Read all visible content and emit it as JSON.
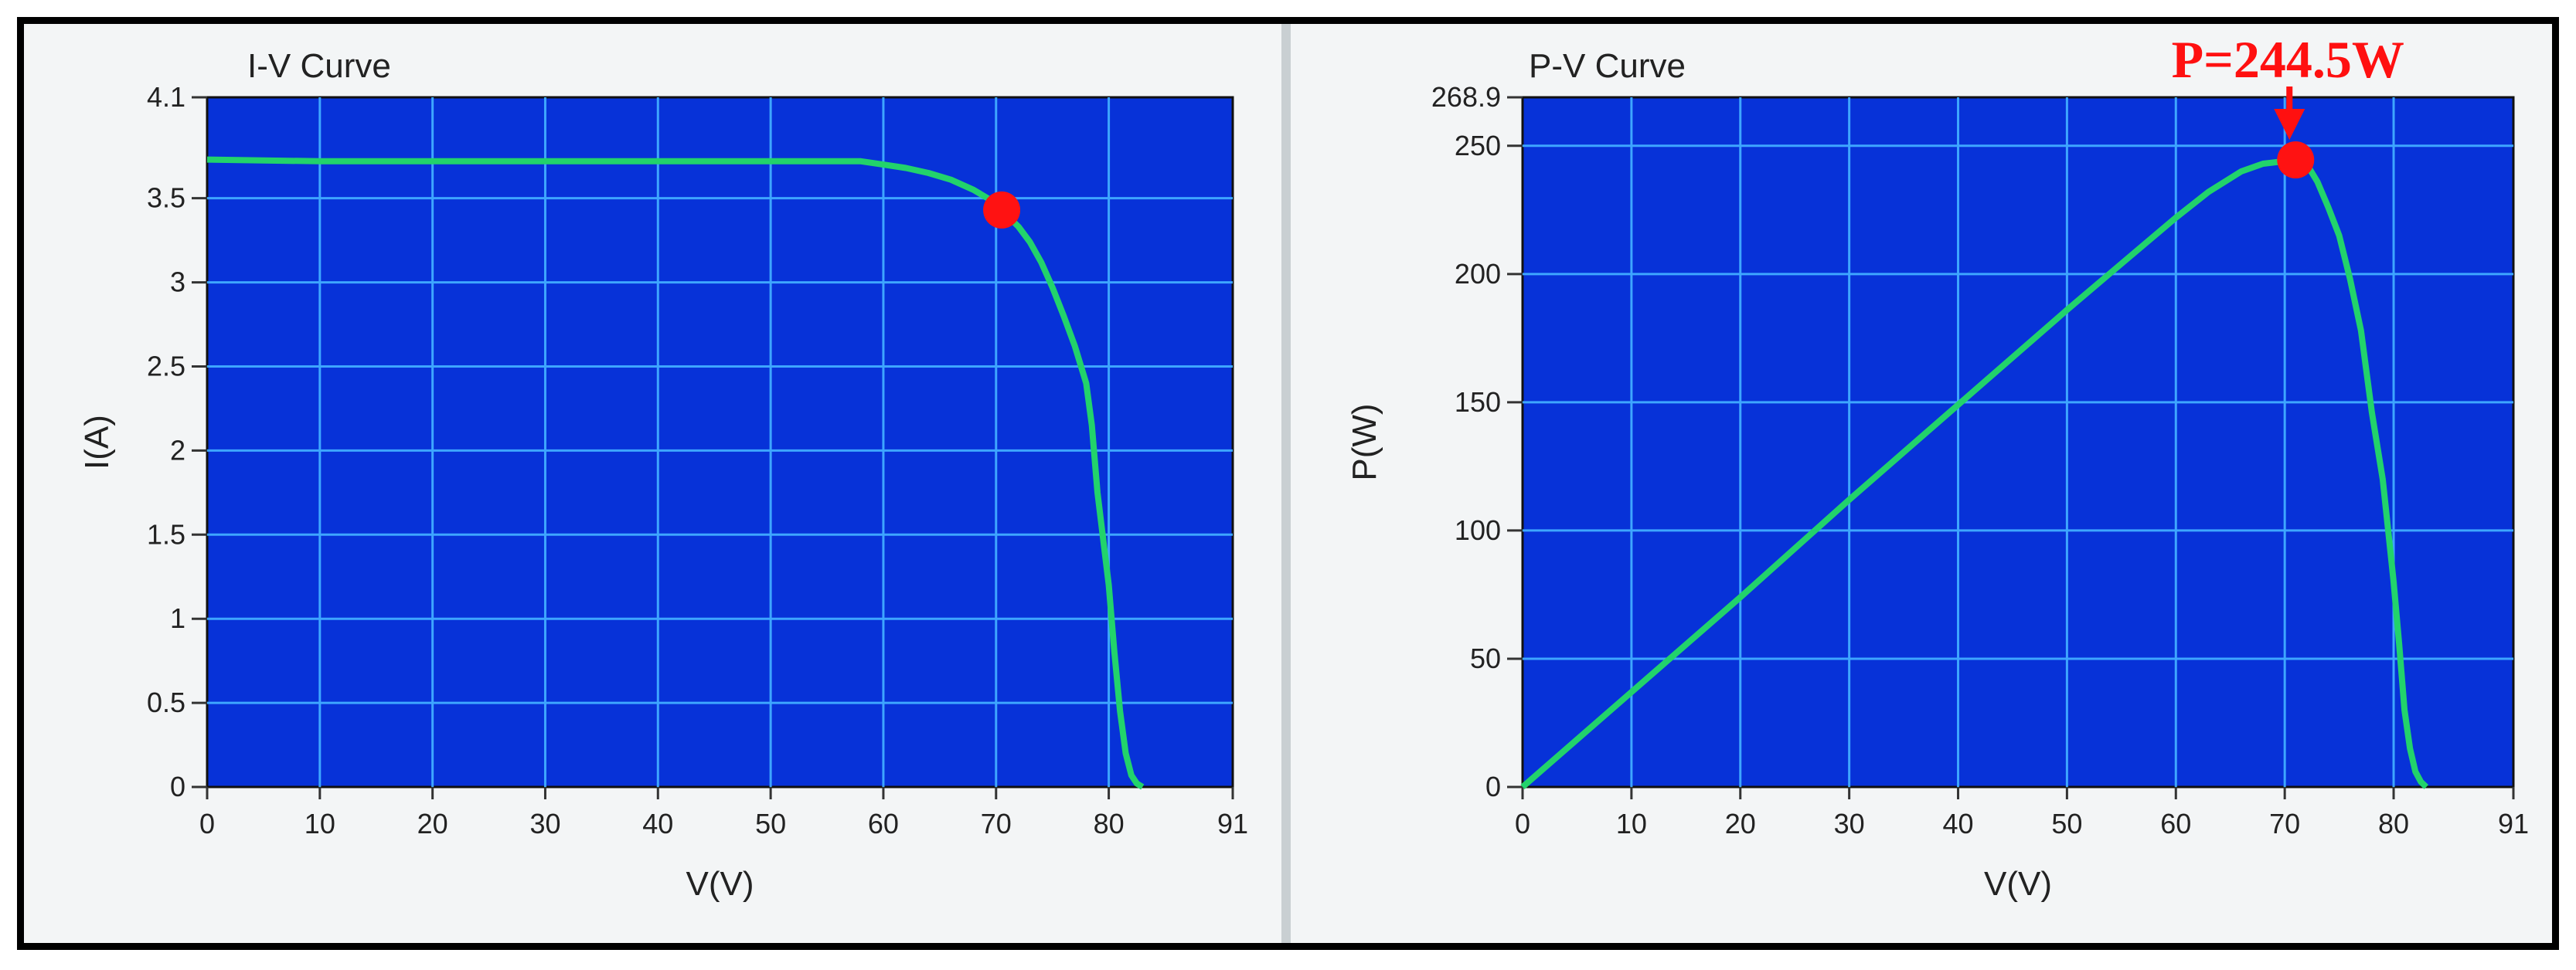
{
  "chart_data": [
    {
      "type": "line",
      "title": "I-V Curve",
      "xlabel": "V(V)",
      "ylabel": "I(A)",
      "xlim": [
        0,
        91
      ],
      "ylim": [
        0,
        4.1
      ],
      "xticks": [
        "0",
        "10",
        "20",
        "30",
        "40",
        "50",
        "60",
        "70",
        "80",
        "91"
      ],
      "yticks": [
        "0",
        "0.5",
        "1",
        "1.5",
        "2",
        "2.5",
        "3",
        "3.5",
        "4.1"
      ],
      "grid": true,
      "colors": {
        "background": "#0732d8",
        "grid": "#3ea6ff",
        "curve": "#22d36b",
        "marker": "#ff1212"
      },
      "series": [
        {
          "x": [
            0,
            10,
            20,
            30,
            40,
            50,
            58,
            60,
            62,
            64,
            66,
            68,
            70,
            70.5,
            72,
            73,
            74,
            75,
            76,
            77,
            78,
            78.5,
            79,
            80,
            80.5,
            81,
            81.5,
            82,
            82.5,
            83
          ],
          "y": [
            3.73,
            3.72,
            3.72,
            3.72,
            3.72,
            3.72,
            3.72,
            3.7,
            3.68,
            3.65,
            3.61,
            3.55,
            3.47,
            3.43,
            3.33,
            3.24,
            3.12,
            2.97,
            2.8,
            2.62,
            2.4,
            2.15,
            1.75,
            1.2,
            0.8,
            0.45,
            0.2,
            0.07,
            0.02,
            0.0
          ]
        }
      ],
      "marker": {
        "x": 70.5,
        "y": 3.43
      }
    },
    {
      "type": "line",
      "title": "P-V Curve",
      "xlabel": "V(V)",
      "ylabel": "P(W)",
      "xlim": [
        0,
        91
      ],
      "ylim": [
        0,
        268.9
      ],
      "xticks": [
        "0",
        "10",
        "20",
        "30",
        "40",
        "50",
        "60",
        "70",
        "80",
        "91"
      ],
      "yticks": [
        "0",
        "50",
        "100",
        "150",
        "200",
        "250",
        "268.9"
      ],
      "grid": true,
      "colors": {
        "background": "#0732d8",
        "grid": "#3ea6ff",
        "curve": "#22d36b",
        "marker": "#ff1212"
      },
      "series": [
        {
          "x": [
            0,
            10,
            20,
            30,
            40,
            50,
            55,
            60,
            63,
            66,
            68,
            70,
            71,
            72,
            73,
            74,
            75,
            76,
            77,
            78,
            79,
            79.5,
            80,
            80.5,
            81,
            81.5,
            82,
            82.5,
            83
          ],
          "y": [
            0,
            37,
            74,
            112,
            149,
            186,
            204,
            222,
            232,
            240,
            243,
            244,
            244.5,
            243,
            236,
            226,
            215,
            198,
            178,
            146,
            120,
            100,
            80,
            56,
            30,
            15,
            6,
            2,
            0
          ]
        }
      ],
      "marker": {
        "x": 71,
        "y": 244.5
      },
      "annotation": {
        "text": "P=244.5W",
        "x": 71,
        "y": 244.5
      }
    }
  ]
}
